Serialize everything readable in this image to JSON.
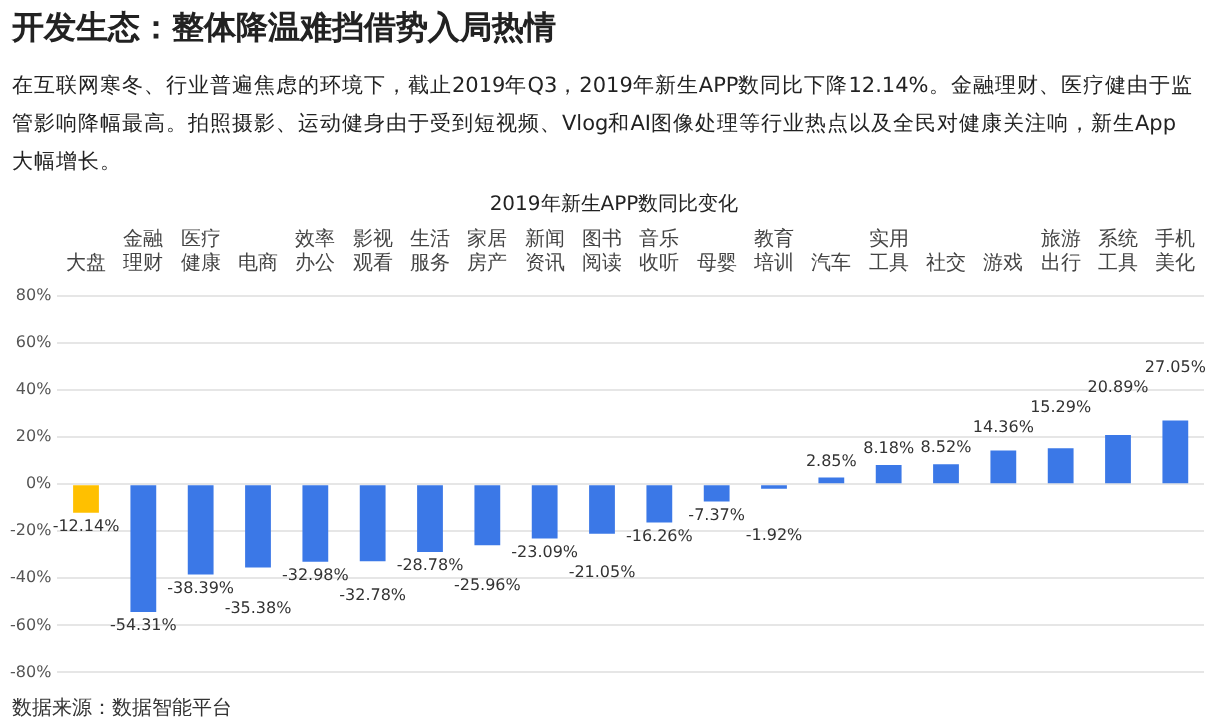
{
  "chart_data": {
    "type": "bar",
    "title": "开发生态：整体降温难挡借势入局热情",
    "subtitle": "在互联网寒冬、行业普遍焦虑的环境下，截止2019年Q3，2019年新生APP数同比下降12.14%。金融理财、医疗健由于监管影响降幅最高。拍照摄影、运动健身由于受到短视频、Vlog和AI图像处理等行业热点以及全民对健康关注响，新生App大幅增长。",
    "annotations": [
      "2019年新生APP数同比变化",
      "数据来源：数据智能平台"
    ],
    "categories": [
      "大盘",
      "金融理财",
      "医疗健康",
      "电商",
      "效率办公",
      "影视观看",
      "生活服务",
      "家居房产",
      "新闻资讯",
      "图书阅读",
      "音乐收听",
      "母婴",
      "教育培训",
      "汽车",
      "实用工具",
      "社交",
      "游戏",
      "旅游出行",
      "系统工具",
      "手机美化"
    ],
    "values": [
      -12.14,
      -54.31,
      -38.39,
      -35.38,
      -32.98,
      -32.78,
      -28.78,
      -25.96,
      -23.09,
      -21.05,
      -16.26,
      -7.37,
      -1.92,
      2.85,
      8.18,
      8.52,
      14.36,
      15.29,
      20.89,
      27.05
    ],
    "value_labels": [
      "-12.14%",
      "-54.31%",
      "-38.39%",
      "-35.38%",
      "-32.98%",
      "-32.78%",
      "-28.78%",
      "-25.96%",
      "-23.09%",
      "-21.05%",
      "-16.26%",
      "-7.37%",
      "-1.92%",
      "2.85%",
      "8.18%",
      "8.52%",
      "14.36%",
      "15.29%",
      "20.89%",
      "27.05%"
    ],
    "colors": [
      "#ffc000",
      "#3b78e7",
      "#3b78e7",
      "#3b78e7",
      "#3b78e7",
      "#3b78e7",
      "#3b78e7",
      "#3b78e7",
      "#3b78e7",
      "#3b78e7",
      "#3b78e7",
      "#3b78e7",
      "#3b78e7",
      "#3b78e7",
      "#3b78e7",
      "#3b78e7",
      "#3b78e7",
      "#3b78e7",
      "#3b78e7",
      "#3b78e7"
    ],
    "ylim": [
      -80,
      80
    ],
    "yticks": [
      {
        "value": -80,
        "label": "-80%"
      },
      {
        "value": -60,
        "label": "-60%"
      },
      {
        "value": -40,
        "label": "-40%"
      },
      {
        "value": -20,
        "label": "-20%"
      },
      {
        "value": 0,
        "label": "0%"
      },
      {
        "value": 20,
        "label": "20%"
      },
      {
        "value": 40,
        "label": "40%"
      },
      {
        "value": 60,
        "label": "60%"
      },
      {
        "value": 80,
        "label": "80%"
      }
    ],
    "grid": "y"
  }
}
